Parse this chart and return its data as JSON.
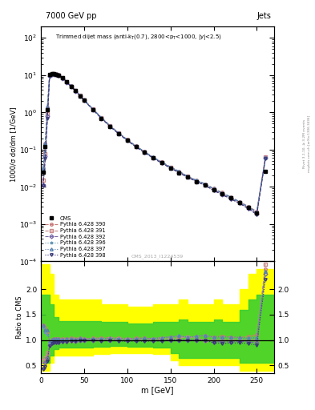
{
  "title_top": "7000 GeV pp",
  "title_right": "Jets",
  "ylabel_main": "1000/σ dσ/dm [1/GeV]",
  "ylabel_ratio": "Ratio to CMS",
  "xlabel": "m [GeV]",
  "watermark": "CMS_2013_I1224539",
  "cms_data_x": [
    2.5,
    5,
    7.5,
    10,
    12.5,
    15,
    17.5,
    20,
    25,
    30,
    35,
    40,
    45,
    50,
    60,
    70,
    80,
    90,
    100,
    110,
    120,
    130,
    140,
    150,
    160,
    170,
    180,
    190,
    200,
    210,
    220,
    230,
    240,
    250,
    260
  ],
  "cms_data_y": [
    0.025,
    0.12,
    1.2,
    10.5,
    11.0,
    10.8,
    10.5,
    10.0,
    8.5,
    6.5,
    5.0,
    3.8,
    2.8,
    2.1,
    1.2,
    0.7,
    0.42,
    0.27,
    0.18,
    0.12,
    0.085,
    0.06,
    0.044,
    0.032,
    0.024,
    0.018,
    0.014,
    0.011,
    0.0085,
    0.0065,
    0.005,
    0.0038,
    0.0028,
    0.002,
    0.026
  ],
  "ratio_390_y": [
    1.3,
    1.25,
    1.15,
    0.97,
    1.01,
    1.02,
    1.02,
    1.02,
    1.02,
    1.03,
    1.04,
    1.03,
    1.04,
    1.02,
    1.04,
    1.04,
    1.05,
    1.04,
    1.03,
    1.04,
    1.04,
    1.03,
    1.05,
    1.06,
    1.08,
    1.06,
    1.07,
    1.09,
    1.06,
    1.08,
    1.06,
    1.05,
    1.07,
    1.1,
    2.4
  ],
  "ratio_391_y": [
    0.6,
    0.65,
    0.75,
    0.93,
    0.98,
    0.99,
    0.99,
    0.99,
    0.99,
    1.0,
    1.0,
    1.0,
    1.018,
    1.01,
    1.017,
    1.014,
    1.02,
    1.02,
    1.011,
    1.017,
    1.012,
    1.017,
    1.023,
    1.031,
    1.042,
    1.056,
    1.036,
    1.0,
    1.0,
    1.0,
    1.0,
    1.0,
    1.0,
    1.0,
    2.5
  ],
  "ratio_392_y": [
    0.45,
    0.55,
    0.65,
    0.9,
    0.955,
    0.963,
    0.971,
    0.97,
    0.976,
    0.985,
    0.99,
    0.987,
    1.0,
    1.0,
    1.0,
    1.0,
    1.0,
    1.0,
    0.989,
    1.0,
    0.988,
    1.0,
    1.0,
    1.0,
    1.0,
    1.0,
    1.0,
    1.0,
    0.965,
    0.969,
    0.96,
    0.974,
    0.964,
    0.95,
    2.3
  ],
  "ratio_396_y": [
    1.25,
    1.15,
    1.1,
    0.95,
    1.0,
    1.01,
    1.01,
    1.01,
    1.012,
    1.015,
    1.02,
    1.013,
    1.029,
    1.014,
    1.025,
    1.029,
    1.024,
    1.026,
    1.017,
    1.025,
    1.024,
    1.033,
    1.045,
    1.063,
    1.083,
    1.056,
    1.071,
    1.091,
    1.035,
    1.046,
    1.04,
    1.026,
    1.036,
    1.05,
    2.35
  ],
  "ratio_397_y": [
    1.3,
    1.2,
    1.2,
    0.98,
    1.01,
    1.02,
    1.02,
    1.02,
    1.018,
    1.023,
    1.03,
    1.018,
    1.036,
    1.019,
    1.033,
    1.029,
    1.036,
    1.03,
    1.022,
    1.033,
    1.035,
    1.033,
    1.045,
    1.063,
    1.083,
    1.056,
    1.071,
    1.091,
    1.059,
    1.062,
    1.06,
    1.053,
    1.036,
    1.05,
    2.35
  ],
  "ratio_398_y": [
    0.42,
    0.48,
    0.58,
    0.885,
    0.936,
    0.944,
    0.952,
    0.95,
    0.965,
    0.969,
    0.98,
    0.974,
    1.0,
    0.99,
    0.992,
    0.986,
    0.988,
    0.985,
    0.972,
    0.983,
    0.976,
    0.983,
    0.977,
    1.0,
    1.0,
    1.0,
    1.0,
    1.0,
    0.941,
    0.938,
    0.94,
    0.947,
    0.929,
    0.9,
    2.2
  ],
  "band_edges": [
    0,
    5,
    10,
    15,
    20,
    30,
    40,
    50,
    60,
    70,
    80,
    90,
    100,
    110,
    120,
    130,
    140,
    150,
    160,
    170,
    180,
    190,
    200,
    210,
    220,
    230,
    240,
    250,
    260,
    270
  ],
  "yellow_lo": [
    0.4,
    0.4,
    0.55,
    0.7,
    0.7,
    0.7,
    0.7,
    0.7,
    0.72,
    0.72,
    0.75,
    0.75,
    0.75,
    0.75,
    0.75,
    0.72,
    0.72,
    0.6,
    0.5,
    0.5,
    0.5,
    0.5,
    0.5,
    0.5,
    0.5,
    0.4,
    0.4,
    0.4,
    0.4
  ],
  "yellow_hi": [
    2.5,
    2.5,
    2.3,
    1.9,
    1.8,
    1.8,
    1.8,
    1.8,
    1.8,
    1.7,
    1.7,
    1.7,
    1.65,
    1.65,
    1.65,
    1.7,
    1.7,
    1.7,
    1.8,
    1.7,
    1.7,
    1.7,
    1.8,
    1.7,
    1.7,
    2.0,
    2.3,
    2.4,
    2.4
  ],
  "green_lo": [
    0.55,
    0.55,
    0.7,
    0.82,
    0.85,
    0.85,
    0.85,
    0.85,
    0.87,
    0.87,
    0.88,
    0.88,
    0.87,
    0.87,
    0.87,
    0.85,
    0.85,
    0.75,
    0.65,
    0.65,
    0.65,
    0.65,
    0.65,
    0.65,
    0.65,
    0.55,
    0.55,
    0.55,
    0.55
  ],
  "green_hi": [
    1.9,
    1.9,
    1.7,
    1.45,
    1.38,
    1.38,
    1.38,
    1.38,
    1.38,
    1.35,
    1.35,
    1.35,
    1.32,
    1.32,
    1.32,
    1.35,
    1.35,
    1.35,
    1.4,
    1.35,
    1.35,
    1.35,
    1.4,
    1.35,
    1.35,
    1.6,
    1.8,
    1.9,
    1.9
  ],
  "color_390": "#c87878",
  "color_391": "#c88888",
  "color_392": "#7868a8",
  "color_396": "#6898b8",
  "color_397": "#5880b0",
  "color_398": "#383878",
  "xlim": [
    0,
    270
  ],
  "ylim_main_lo": 0.0001,
  "ylim_main_hi": 200,
  "ylim_ratio_lo": 0.35,
  "ylim_ratio_hi": 2.55,
  "ratio_yticks": [
    0.5,
    1.0,
    1.5,
    2.0
  ]
}
